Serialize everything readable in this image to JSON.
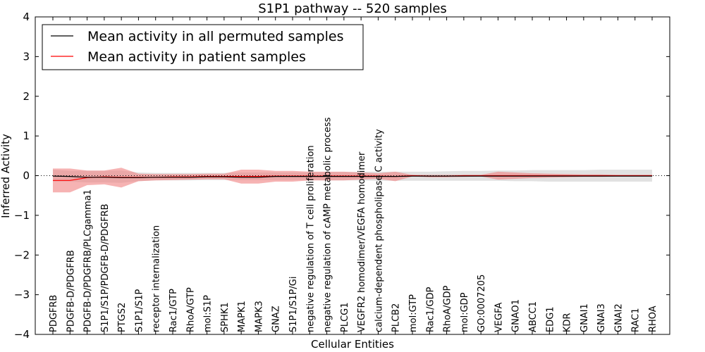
{
  "chart_data": {
    "type": "line",
    "title": "S1P1 pathway -- 520 samples",
    "xlabel": "Cellular Entities",
    "ylabel": "Inferred Activity",
    "ylim": [
      -4,
      4
    ],
    "yticks": [
      {
        "value": -4,
        "label": "−4"
      },
      {
        "value": -3,
        "label": "−3"
      },
      {
        "value": -2,
        "label": "−2"
      },
      {
        "value": -1,
        "label": "−1"
      },
      {
        "value": 0,
        "label": "0"
      },
      {
        "value": 1,
        "label": "1"
      },
      {
        "value": 2,
        "label": "2"
      },
      {
        "value": 3,
        "label": "3"
      },
      {
        "value": 4,
        "label": "4"
      }
    ],
    "legend": {
      "position": "top-left",
      "entries": [
        {
          "label": "Mean activity in all permuted samples",
          "color": "#000000"
        },
        {
          "label": "Mean activity in patient samples",
          "color": "#ff0000"
        }
      ]
    },
    "categories": [
      "PDGFRB",
      "PDGFB-D/PDGFRB",
      "PDGFB-D/PDGFRB/PLCgamma1",
      "S1P1/S1P/PDGFB-D/PDGFRB",
      "PTGS2",
      "S1P1/S1P",
      "receptor internalization",
      "Rac1/GTP",
      "RhoA/GTP",
      "mol:S1P",
      "SPHK1",
      "MAPK1",
      "MAPK3",
      "GNAZ",
      "S1P1/S1P/Gi",
      "negative regulation of T cell proliferation",
      "negative regulation of cAMP metabolic process",
      "PLCG1",
      "VEGFR2 homodimer/VEGFA homodimer",
      "calcium-dependent phospholipase C activity",
      "PLCB2",
      "mol:GTP",
      "Rac1/GDP",
      "RhoA/GDP",
      "mol:GDP",
      "GO:0007205",
      "VEGFA",
      "GNAO1",
      "ABCC1",
      "EDG1",
      "KDR",
      "GNAI1",
      "GNAI3",
      "GNAI2",
      "RAC1",
      "RHOA"
    ],
    "series": [
      {
        "name": "Mean activity in all permuted samples",
        "color": "#000000",
        "values": [
          -0.01,
          -0.02,
          -0.04,
          -0.04,
          -0.05,
          -0.05,
          -0.04,
          -0.04,
          -0.04,
          -0.03,
          -0.03,
          -0.04,
          -0.04,
          -0.02,
          -0.02,
          -0.02,
          -0.02,
          -0.02,
          -0.02,
          -0.02,
          -0.02,
          -0.01,
          -0.01,
          -0.01,
          -0.01,
          -0.01,
          -0.01,
          -0.01,
          -0.01,
          -0.01,
          -0.01,
          -0.01,
          -0.01,
          -0.01,
          -0.01,
          -0.01
        ],
        "band_upper": [
          0.15,
          0.12,
          0.12,
          0.12,
          0.13,
          0.08,
          0.07,
          0.07,
          0.07,
          0.07,
          0.07,
          0.08,
          0.08,
          0.08,
          0.08,
          0.08,
          0.09,
          0.09,
          0.1,
          0.1,
          0.1,
          0.1,
          0.1,
          0.11,
          0.12,
          0.12,
          0.13,
          0.13,
          0.14,
          0.14,
          0.14,
          0.14,
          0.15,
          0.15,
          0.15,
          0.15
        ],
        "band_lower": [
          -0.15,
          -0.15,
          -0.17,
          -0.17,
          -0.18,
          -0.14,
          -0.12,
          -0.12,
          -0.12,
          -0.11,
          -0.11,
          -0.11,
          -0.11,
          -0.11,
          -0.11,
          -0.11,
          -0.12,
          -0.12,
          -0.12,
          -0.13,
          -0.13,
          -0.13,
          -0.13,
          -0.13,
          -0.13,
          -0.13,
          -0.13,
          -0.14,
          -0.14,
          -0.15,
          -0.15,
          -0.15,
          -0.15,
          -0.15,
          -0.15,
          -0.15
        ]
      },
      {
        "name": "Mean activity in patient samples",
        "color": "#ff0000",
        "values": [
          -0.12,
          -0.12,
          -0.05,
          -0.03,
          -0.04,
          -0.04,
          -0.04,
          -0.03,
          -0.03,
          -0.02,
          -0.02,
          -0.02,
          -0.02,
          -0.01,
          -0.01,
          -0.01,
          -0.01,
          -0.01,
          -0.01,
          -0.01,
          -0.02,
          0.0,
          -0.01,
          -0.01,
          0.0,
          0.0,
          0.0,
          0.0,
          0.0,
          0.0,
          0.0,
          0.0,
          0.0,
          0.0,
          0.0,
          0.0
        ],
        "band_upper": [
          0.18,
          0.18,
          0.13,
          0.13,
          0.2,
          0.05,
          0.04,
          0.04,
          0.04,
          0.05,
          0.05,
          0.15,
          0.15,
          0.12,
          0.12,
          0.1,
          0.1,
          0.1,
          0.08,
          0.06,
          0.1,
          0.02,
          0.02,
          0.02,
          0.02,
          0.02,
          0.1,
          0.08,
          0.06,
          0.05,
          0.04,
          0.03,
          0.03,
          0.02,
          0.02,
          0.02
        ],
        "band_lower": [
          -0.42,
          -0.42,
          -0.24,
          -0.22,
          -0.3,
          -0.14,
          -0.12,
          -0.11,
          -0.1,
          -0.09,
          -0.09,
          -0.2,
          -0.2,
          -0.15,
          -0.15,
          -0.12,
          -0.12,
          -0.12,
          -0.1,
          -0.08,
          -0.14,
          -0.02,
          -0.04,
          -0.04,
          -0.03,
          -0.02,
          -0.1,
          -0.08,
          -0.06,
          -0.05,
          -0.04,
          -0.03,
          -0.03,
          -0.02,
          -0.02,
          -0.02
        ]
      }
    ],
    "reference_line": {
      "value": 0,
      "style": "dotted"
    }
  }
}
